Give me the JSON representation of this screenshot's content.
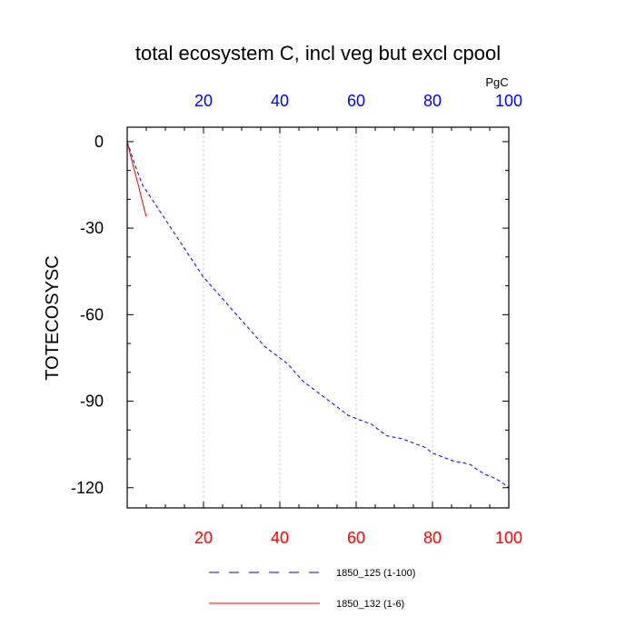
{
  "chart_data": {
    "type": "line",
    "title": "total ecosystem C, incl veg but excl cpool",
    "units_label": "PgC",
    "ylabel": "TOTECOSYSC",
    "xlabel": "",
    "xlim": [
      0,
      100
    ],
    "ylim": [
      -127,
      5
    ],
    "x_ticks": [
      20,
      40,
      60,
      80,
      100
    ],
    "y_ticks": [
      0,
      -30,
      -60,
      -90,
      -120
    ],
    "grid": "vertical dotted at x ticks",
    "colors": {
      "bottom_tick_labels": "#ff0000",
      "top_tick_labels": "#0000ff"
    },
    "series": [
      {
        "name": "1850_125 (1-100)",
        "color": "#0000ff",
        "dash": "dashed",
        "x": [
          0,
          2,
          4,
          6,
          8,
          10,
          12,
          14,
          16,
          18,
          20,
          22,
          24,
          26,
          28,
          30,
          32,
          34,
          36,
          38,
          40,
          42,
          44,
          46,
          48,
          50,
          52,
          54,
          56,
          58,
          60,
          62,
          64,
          66,
          68,
          70,
          72,
          74,
          76,
          78,
          80,
          82,
          84,
          86,
          88,
          90,
          92,
          94,
          96,
          98,
          100
        ],
        "values": [
          0,
          -8,
          -15,
          -19,
          -23,
          -27,
          -31,
          -35,
          -39,
          -43,
          -47,
          -50,
          -53,
          -56,
          -59,
          -62,
          -65,
          -68,
          -71,
          -73,
          -75,
          -77,
          -80,
          -83,
          -85,
          -87,
          -89,
          -91,
          -93,
          -95,
          -96,
          -97,
          -98,
          -100,
          -102,
          -102.5,
          -103,
          -104,
          -105,
          -106,
          -108,
          -109,
          -110,
          -111,
          -111.3,
          -112,
          -114,
          -115.5,
          -116.5,
          -118,
          -120
        ]
      },
      {
        "name": "1850_132 (1-6)",
        "color": "#ff0000",
        "dash": "solid",
        "x": [
          0,
          1,
          2,
          3,
          4,
          5
        ],
        "values": [
          0,
          -5.5,
          -10.5,
          -15.5,
          -21,
          -26
        ]
      }
    ]
  }
}
